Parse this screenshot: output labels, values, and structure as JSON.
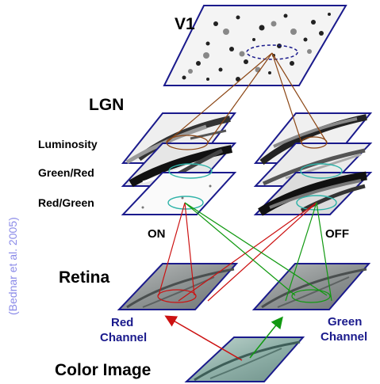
{
  "labels": {
    "v1": "V1",
    "lgn": "LGN",
    "luminosity": "Luminosity",
    "green_red": "Green/Red",
    "red_green": "Red/Green",
    "on": "ON",
    "off": "OFF",
    "retina": "Retina",
    "red_channel_line1": "Red",
    "red_channel_line2": "Channel",
    "green_channel_line1": "Green",
    "green_channel_line2": "Channel",
    "color_image": "Color Image",
    "citation": "(Bednar et al. 2005)"
  },
  "colors": {
    "plane_border": "#1a1a8c",
    "brown_connection": "#8b4513",
    "teal_connection": "#2fb3a8",
    "red_connection": "#cc1111",
    "green_connection": "#119911",
    "channel_label": "#1a1a8c",
    "citation": "#8a8ae8"
  }
}
